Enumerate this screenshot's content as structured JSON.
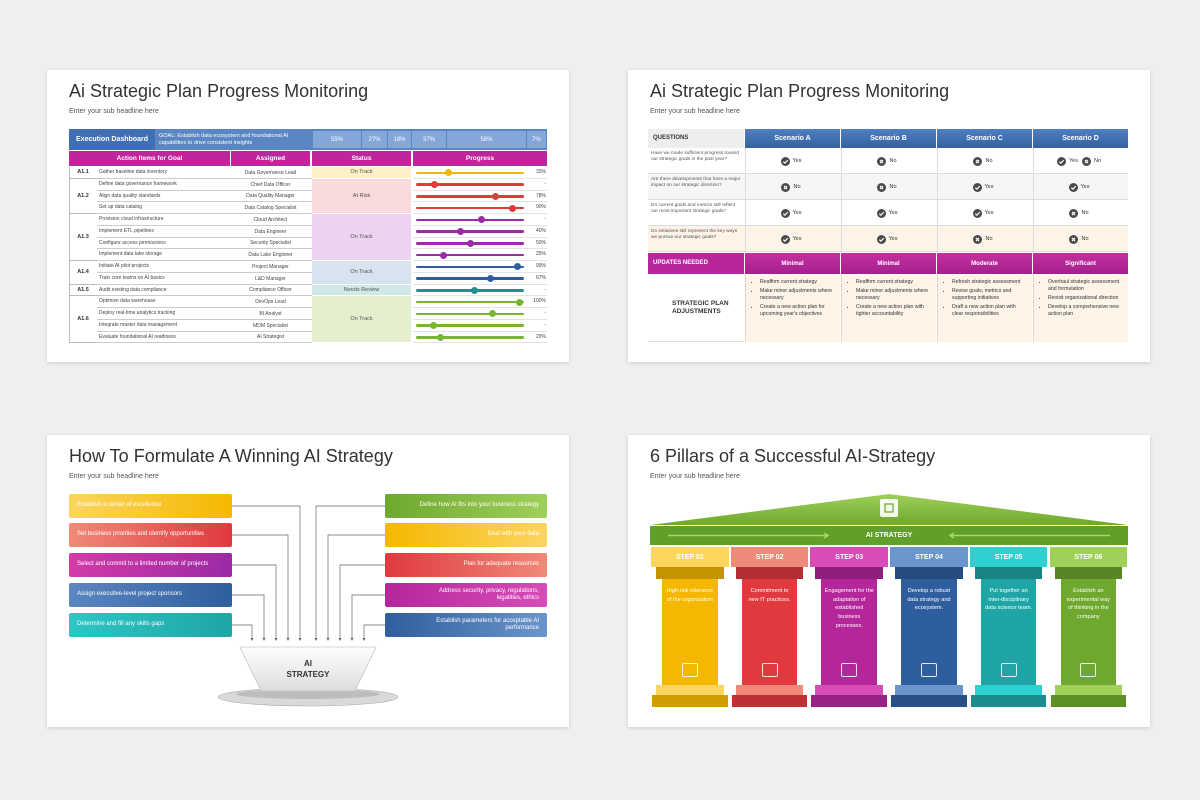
{
  "slides": [
    {
      "title": "Ai Strategic Plan Progress Monitoring",
      "subtitle": "Enter your sub headline here",
      "dashboard": {
        "label": "Execution Dashboard",
        "goal": "GOAL: Establish data ecosystem and foundational AI capabilities to drive consistent insights",
        "shares": [
          "55%",
          "27%",
          "18%",
          "37%",
          "56%",
          "7%"
        ]
      },
      "headers": [
        "Action Items for Goal",
        "Assigned",
        "Status",
        "Progress"
      ],
      "groups": [
        {
          "id": "A1.1",
          "status": "On Track",
          "color": "#f2b705",
          "tint": "#fdf0c4",
          "rows": [
            {
              "item": "Gather baseline data inventory",
              "assigned": "Data Governance Lead",
              "progress": "33%",
              "knob": 30
            }
          ]
        },
        {
          "id": "A1.2",
          "status": "At Risk",
          "color": "#e03a3a",
          "tint": "#f9dada",
          "rows": [
            {
              "item": "Define data governance framework",
              "assigned": "Chief Data Officer",
              "progress": "-",
              "knob": 17
            },
            {
              "item": "Align data quality standards",
              "assigned": "Data Quality Manager",
              "progress": "78%",
              "knob": 74
            },
            {
              "item": "Set up data catalog",
              "assigned": "Data Catalog Specialist",
              "progress": "90%",
              "knob": 89
            }
          ]
        },
        {
          "id": "A1.3",
          "status": "On Track",
          "color": "#9b2aa6",
          "tint": "#ecd3ef",
          "rows": [
            {
              "item": "Provision cloud infrastructure",
              "assigned": "Cloud Architect",
              "progress": "-",
              "knob": 61
            },
            {
              "item": "Implement ETL pipelines",
              "assigned": "Data Engineer",
              "progress": "40%",
              "knob": 41
            },
            {
              "item": "Configure access permissions",
              "assigned": "Security Specialist",
              "progress": "50%",
              "knob": 50
            },
            {
              "item": "Implement data lake storage",
              "assigned": "Data Lake Engineer",
              "progress": "25%",
              "knob": 25
            }
          ]
        },
        {
          "id": "A1.4",
          "status": "On Track",
          "color": "#2f5e9e",
          "tint": "#d9e2ef",
          "rows": [
            {
              "item": "Initiate AI pilot projects",
              "assigned": "Project Manager",
              "progress": "99%",
              "knob": 94
            },
            {
              "item": "Train core teams on AI basics",
              "assigned": "L&D Manager",
              "progress": "67%",
              "knob": 69
            }
          ]
        },
        {
          "id": "A1.5",
          "status": "Needs Review",
          "color": "#1f8f8f",
          "tint": "#cfe9e9",
          "rows": [
            {
              "item": "Audit existing data compliance",
              "assigned": "Compliance Officer",
              "progress": "-",
              "knob": 54
            }
          ]
        },
        {
          "id": "A1.6",
          "status": "On Track",
          "color": "#7ab532",
          "tint": "#e3efcf",
          "rows": [
            {
              "item": "Optimize data warehouse",
              "assigned": "DevOps Lead",
              "progress": "100%",
              "knob": 96
            },
            {
              "item": "Deploy real-time analytics tracking",
              "assigned": "BI Analyst",
              "progress": "-",
              "knob": 71
            },
            {
              "item": "Integrate master data management",
              "assigned": "MDM Specialist",
              "progress": "-",
              "knob": 16
            },
            {
              "item": "Evaluate foundational AI readiness",
              "assigned": "AI Strategist",
              "progress": "20%",
              "knob": 23
            }
          ]
        }
      ]
    },
    {
      "title": "Ai Strategic Plan Progress Monitoring",
      "subtitle": "Enter your sub headline here",
      "header": [
        "QUESTIONS",
        "Scenario A",
        "Scenario B",
        "Scenario C",
        "Scenario D"
      ],
      "questions": [
        {
          "text": "Have we made sufficient progress toward our strategic goals in the past year?",
          "answers": [
            [
              {
                "label": "Yes",
                "ok": true
              }
            ],
            [
              {
                "label": "No",
                "ok": false
              }
            ],
            [
              {
                "label": "No",
                "ok": false
              }
            ],
            [
              {
                "label": "Yes",
                "ok": true
              },
              {
                "label": "No",
                "ok": false
              }
            ]
          ]
        },
        {
          "text": "Are there developments that have a major impact on our strategic direction?",
          "answers": [
            [
              {
                "label": "No",
                "ok": false
              }
            ],
            [
              {
                "label": "No",
                "ok": false
              }
            ],
            [
              {
                "label": "Yes",
                "ok": true
              }
            ],
            [
              {
                "label": "Yes",
                "ok": true
              }
            ]
          ]
        },
        {
          "text": "Do current goals and metrics still reflect our most important strategic goals?",
          "answers": [
            [
              {
                "label": "Yes",
                "ok": true
              }
            ],
            [
              {
                "label": "Yes",
                "ok": true
              }
            ],
            [
              {
                "label": "Yes",
                "ok": true
              }
            ],
            [
              {
                "label": "No",
                "ok": false
              }
            ]
          ]
        },
        {
          "text": "Do initiatives still represent the key ways we pursue our strategic goals?",
          "answers": [
            [
              {
                "label": "Yes",
                "ok": true
              }
            ],
            [
              {
                "label": "Yes",
                "ok": true
              }
            ],
            [
              {
                "label": "No",
                "ok": false
              }
            ],
            [
              {
                "label": "No",
                "ok": false
              }
            ]
          ]
        }
      ],
      "updates_label": "UPDATES NEEDED",
      "updates": [
        "Minimal",
        "Minimal",
        "Moderate",
        "Significant"
      ],
      "adjust_label": "STRATEGIC PLAN ADJUSTMENTS",
      "adjustments": [
        [
          "Reaffirm current strategy",
          "Make minor adjustments where necessary",
          "Create a new action plan for upcoming year's objectives"
        ],
        [
          "Reaffirm current strategy",
          "Make minor adjustments where necessary",
          "Create a new action plan with tighter accountability"
        ],
        [
          "Refresh strategic assessment",
          "Revise goals, metrics and supporting initiatives",
          "Draft a new action plan with clear responsibilities"
        ],
        [
          "Overhaul strategic assessment and formulation",
          "Revisit organizational direction",
          "Develop a comprehensive new action plan"
        ]
      ]
    },
    {
      "title": "How To Formulate A Winning AI Strategy",
      "subtitle": "Enter your sub headline here",
      "left": [
        {
          "text": "Establish a center of excellence",
          "color": "#f5b800",
          "tint": "#fbd560"
        },
        {
          "text": "Set business priorities and identify opportunities",
          "color": "#e0393e",
          "tint": "#f08a78"
        },
        {
          "text": "Select and commit to a limited number of projects",
          "color": "#9b2aa6",
          "tint": "#d33aa8"
        },
        {
          "text": "Assign executive-level project sponsors",
          "color": "#2f5e9e",
          "tint": "#5b86c2"
        },
        {
          "text": "Determine and fill any skills gaps",
          "color": "#1fa5a5",
          "tint": "#2fc6c6"
        }
      ],
      "right": [
        {
          "text": "Define how AI fits into your business strategy",
          "color": "#6ea82e",
          "tint": "#9fd05a"
        },
        {
          "text": "Deal with your data",
          "color": "#f5b800",
          "tint": "#fbd560"
        },
        {
          "text": "Plan for adequate resources",
          "color": "#e0393e",
          "tint": "#f08a78"
        },
        {
          "text": "Address security, privacy, regulations, legalities, ethics",
          "color": "#b4279b",
          "tint": "#d84cb8"
        },
        {
          "text": "Establish parameters for acceptable AI performance",
          "color": "#2f5e9e",
          "tint": "#6b95cc"
        }
      ],
      "center": [
        "AI",
        "STRATEGY"
      ]
    },
    {
      "title": "6 Pillars of a Successful AI-Strategy",
      "subtitle": "Enter your sub headline here",
      "banner": "AI STRATEGY",
      "pillars": [
        {
          "step": "STEP 01",
          "text": "High-risk tolerance of the organization",
          "color": "#f5b800",
          "tint": "#fbd560"
        },
        {
          "step": "STEP 02",
          "text": "Commitment to new IT practices.",
          "color": "#e0393e",
          "tint": "#f08a78"
        },
        {
          "step": "STEP 03",
          "text": "Engagement for the adaptation of established business processes.",
          "color": "#b4279b",
          "tint": "#d84cb8"
        },
        {
          "step": "STEP 04",
          "text": "Develop a robust data strategy and ecosystem.",
          "color": "#2f5e9e",
          "tint": "#6b95cc"
        },
        {
          "step": "STEP 05",
          "text": "Put together an inter-disciplinary data science team.",
          "color": "#1fa5a5",
          "tint": "#2fd0d0"
        },
        {
          "step": "STEP 06",
          "text": "Establish an experimental way of thinking in the company",
          "color": "#6ea82e",
          "tint": "#9fd05a"
        }
      ]
    }
  ]
}
